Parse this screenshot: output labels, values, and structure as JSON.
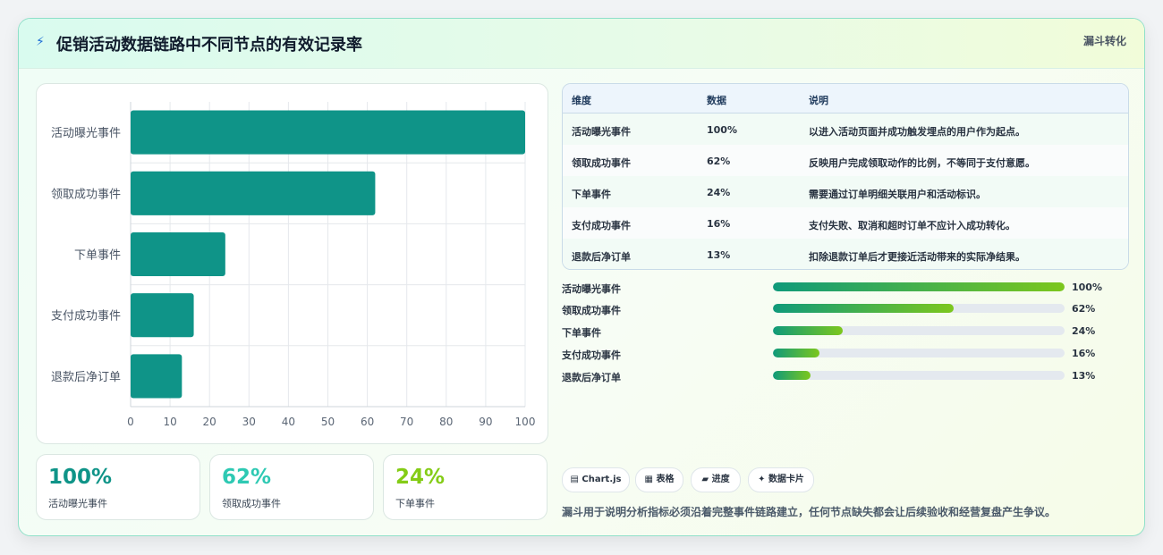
{
  "header": {
    "icon": "bolt-icon",
    "title": "促销活动数据链路中不同节点的有效记录率",
    "tag": "漏斗转化"
  },
  "chart_data": {
    "type": "bar",
    "orientation": "horizontal",
    "categories": [
      "活动曝光事件",
      "领取成功事件",
      "下单事件",
      "支付成功事件",
      "退款后净订单"
    ],
    "values": [
      100,
      62,
      24,
      16,
      13
    ],
    "xticks": [
      "0",
      "10",
      "20",
      "30",
      "40",
      "50",
      "60",
      "70",
      "80",
      "90",
      "100"
    ],
    "xlim": [
      0,
      100
    ],
    "bar_color": "#0f9488",
    "grid": true,
    "legend": "none"
  },
  "kpis": [
    {
      "value": "100%",
      "label": "活动曝光事件",
      "color": "#0f9488"
    },
    {
      "value": "62%",
      "label": "领取成功事件",
      "color": "#2ec9b3"
    },
    {
      "value": "24%",
      "label": "下单事件",
      "color": "#84cc16"
    }
  ],
  "table": {
    "headers": [
      "维度",
      "数据",
      "说明"
    ],
    "rows": [
      [
        "活动曝光事件",
        "100%",
        "以进入活动页面并成功触发埋点的用户作为起点。"
      ],
      [
        "领取成功事件",
        "62%",
        "反映用户完成领取动作的比例，不等同于支付意愿。"
      ],
      [
        "下单事件",
        "24%",
        "需要通过订单明细关联用户和活动标识。"
      ],
      [
        "支付成功事件",
        "16%",
        "支付失败、取消和超时订单不应计入成功转化。"
      ],
      [
        "退款后净订单",
        "13%",
        "扣除退款订单后才更接近活动带来的实际净结果。"
      ]
    ]
  },
  "progress": [
    {
      "label": "活动曝光事件",
      "value": 100,
      "text": "100%"
    },
    {
      "label": "领取成功事件",
      "value": 62,
      "text": "62%"
    },
    {
      "label": "下单事件",
      "value": 24,
      "text": "24%"
    },
    {
      "label": "支付成功事件",
      "value": 16,
      "text": "16%"
    },
    {
      "label": "退款后净订单",
      "value": 13,
      "text": "13%"
    }
  ],
  "chips": [
    {
      "label": "Chart.js",
      "icon": "chart-icon",
      "glyph": "▤"
    },
    {
      "label": "表格",
      "icon": "table-icon",
      "glyph": "▦"
    },
    {
      "label": "进度",
      "icon": "progress-icon",
      "glyph": "▰"
    },
    {
      "label": "数据卡片",
      "icon": "sparkle-icon",
      "glyph": "✦"
    }
  ],
  "footer": "漏斗用于说明分析指标必须沿着完整事件链路建立，任何节点缺失都会让后续验收和经营复盘产生争议。"
}
